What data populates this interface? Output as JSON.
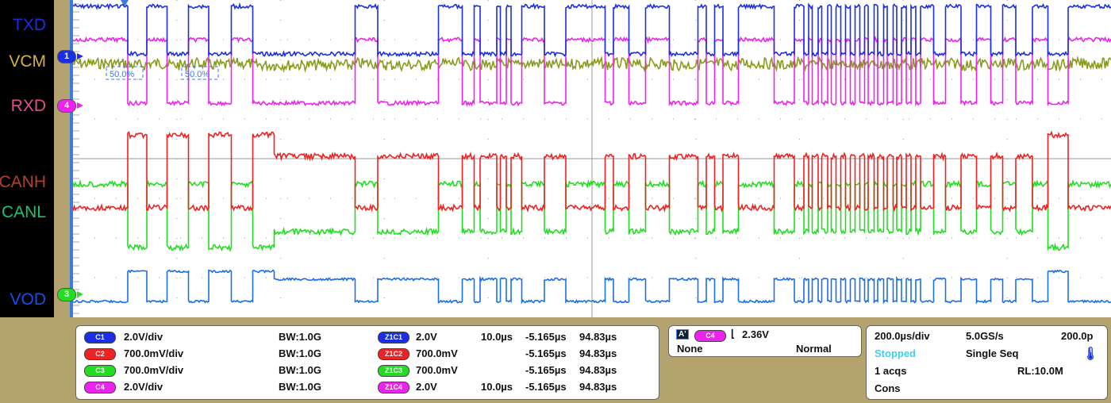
{
  "channel_labels": {
    "txd": "TXD",
    "vcm": "VCM",
    "rxd": "RXD",
    "canh": "CANH",
    "canl": "CANL",
    "vod": "VOD"
  },
  "markers": {
    "m1": "1",
    "m4": "4",
    "m3": "3"
  },
  "cursor_labels": [
    "50.0%",
    "50.0%"
  ],
  "channels": [
    {
      "tag": "C1",
      "scale": "2.0V/div",
      "bw": "BW:1.0G",
      "zoom_tag": "Z1C1",
      "zoom_scale": "2.0V",
      "zoom_time": "10.0µs",
      "zoom_pos": "-5.165µs",
      "zoom_end": "94.83µs",
      "color": "#1a2ee6"
    },
    {
      "tag": "C2",
      "scale": "700.0mV/div",
      "bw": "BW:1.0G",
      "zoom_tag": "Z1C2",
      "zoom_scale": "700.0mV",
      "zoom_time": "",
      "zoom_pos": "-5.165µs",
      "zoom_end": "94.83µs",
      "color": "#ee2222"
    },
    {
      "tag": "C3",
      "scale": "700.0mV/div",
      "bw": "BW:1.0G",
      "zoom_tag": "Z1C3",
      "zoom_scale": "700.0mV",
      "zoom_time": "",
      "zoom_pos": "-5.165µs",
      "zoom_end": "94.83µs",
      "color": "#22dd22"
    },
    {
      "tag": "C4",
      "scale": "2.0V/div",
      "bw": "BW:1.0G",
      "zoom_tag": "Z1C4",
      "zoom_scale": "2.0V",
      "zoom_time": "10.0µs",
      "zoom_pos": "-5.165µs",
      "zoom_end": "94.83µs",
      "color": "#ee22ee"
    }
  ],
  "trigger": {
    "tag": "A'",
    "source": "C4",
    "level": "2.36V",
    "coupling": "None",
    "mode": "Normal"
  },
  "acquisition": {
    "timebase": "200.0µs/div",
    "sample_rate": "5.0GS/s",
    "resolution": "200.0p",
    "state": "Stopped",
    "mode": "Single Seq",
    "acqs": "1 acqs",
    "record_length": "RL:10.0M",
    "cons": "Cons"
  },
  "chart_data": {
    "type": "line",
    "x_range_us": [
      0,
      2000
    ],
    "divisions_x": 10,
    "dominant_strong_us": [
      [
        104,
        142
      ],
      [
        180,
        222
      ],
      [
        260,
        303
      ],
      [
        346,
        387
      ],
      [
        1878,
        1916
      ]
    ],
    "dominant_weak_us": [
      [
        387,
        543
      ],
      [
        586,
        703
      ],
      [
        749,
        772
      ],
      [
        784,
        815
      ],
      [
        823,
        833
      ],
      [
        842,
        864
      ],
      [
        907,
        948
      ],
      [
        1024,
        1040
      ],
      [
        1070,
        1102
      ],
      [
        1147,
        1202
      ],
      [
        1220,
        1235
      ],
      [
        1251,
        1281
      ],
      [
        1350,
        1388
      ],
      [
        1406,
        1416
      ],
      [
        1424,
        1434
      ],
      [
        1442,
        1452
      ],
      [
        1460,
        1470
      ],
      [
        1478,
        1488
      ],
      [
        1496,
        1506
      ],
      [
        1514,
        1524
      ],
      [
        1532,
        1542
      ],
      [
        1550,
        1560
      ],
      [
        1568,
        1578
      ],
      [
        1586,
        1596
      ],
      [
        1604,
        1614
      ],
      [
        1622,
        1632
      ],
      [
        1656,
        1679
      ],
      [
        1710,
        1740
      ],
      [
        1768,
        1789
      ],
      [
        1816,
        1847
      ]
    ],
    "series": [
      "TXD",
      "VCM",
      "RXD",
      "CANH",
      "CANL",
      "VOD"
    ]
  }
}
